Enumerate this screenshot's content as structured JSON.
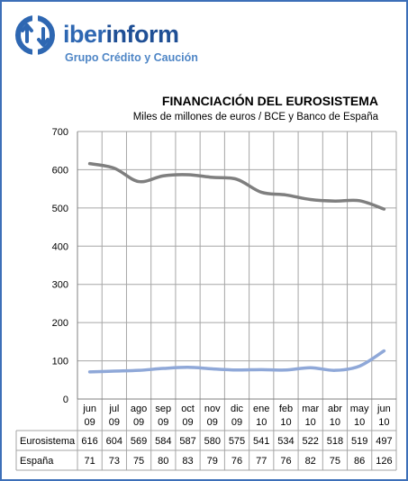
{
  "brand": {
    "name_light": "iber",
    "name_strong": "inform",
    "subtitle": "Grupo Crédito y Caución"
  },
  "colors": {
    "frame": "#3d6fb8",
    "eurosistema_line": "#7f7f7f",
    "espana_line": "#8fa8d8",
    "grid": "#a6a6a6"
  },
  "chart_data": {
    "type": "line",
    "title": "FINANCIACIÓN DEL EUROSISTEMA",
    "subtitle": "Miles de millones de euros / BCE y Banco de España",
    "categories": [
      [
        "jun",
        "09"
      ],
      [
        "jul",
        "09"
      ],
      [
        "ago",
        "09"
      ],
      [
        "sep",
        "09"
      ],
      [
        "oct",
        "09"
      ],
      [
        "nov",
        "09"
      ],
      [
        "dic",
        "09"
      ],
      [
        "ene",
        "10"
      ],
      [
        "feb",
        "10"
      ],
      [
        "mar",
        "10"
      ],
      [
        "abr",
        "10"
      ],
      [
        "may",
        "10"
      ],
      [
        "jun",
        "10"
      ]
    ],
    "series": [
      {
        "name": "Eurosistema",
        "values": [
          616,
          604,
          569,
          584,
          587,
          580,
          575,
          541,
          534,
          522,
          518,
          519,
          497
        ]
      },
      {
        "name": "España",
        "values": [
          71,
          73,
          75,
          80,
          83,
          79,
          76,
          77,
          76,
          82,
          75,
          86,
          126
        ]
      }
    ],
    "ylim": [
      0,
      700
    ],
    "yticks": [
      0,
      100,
      200,
      300,
      400,
      500,
      600,
      700
    ],
    "grid": true,
    "legend": "data-table"
  }
}
